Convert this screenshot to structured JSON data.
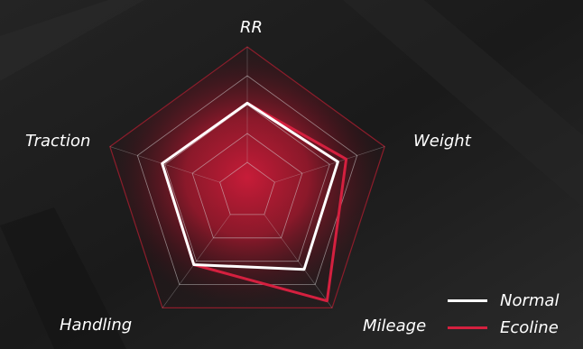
{
  "chart_data": {
    "type": "radar",
    "axes": [
      "RR",
      "Weight",
      "Mileage",
      "Handling",
      "Traction"
    ],
    "levels": 5,
    "range": [
      0,
      5
    ],
    "series": [
      {
        "name": "Normal",
        "values": [
          3.05,
          3.3,
          3.35,
          3.15,
          3.1
        ],
        "color": "#ffffff"
      },
      {
        "name": "Ecoline",
        "values": [
          3.05,
          3.6,
          4.7,
          3.15,
          3.1
        ],
        "color": "#d4203f"
      }
    ],
    "legend_position": "bottom-right",
    "grid": true
  },
  "colors": {
    "background": "#1b1b1b",
    "fill": "#c41a33",
    "grid": "#d9d9d9",
    "outer_grid": "#8c1d2b"
  }
}
